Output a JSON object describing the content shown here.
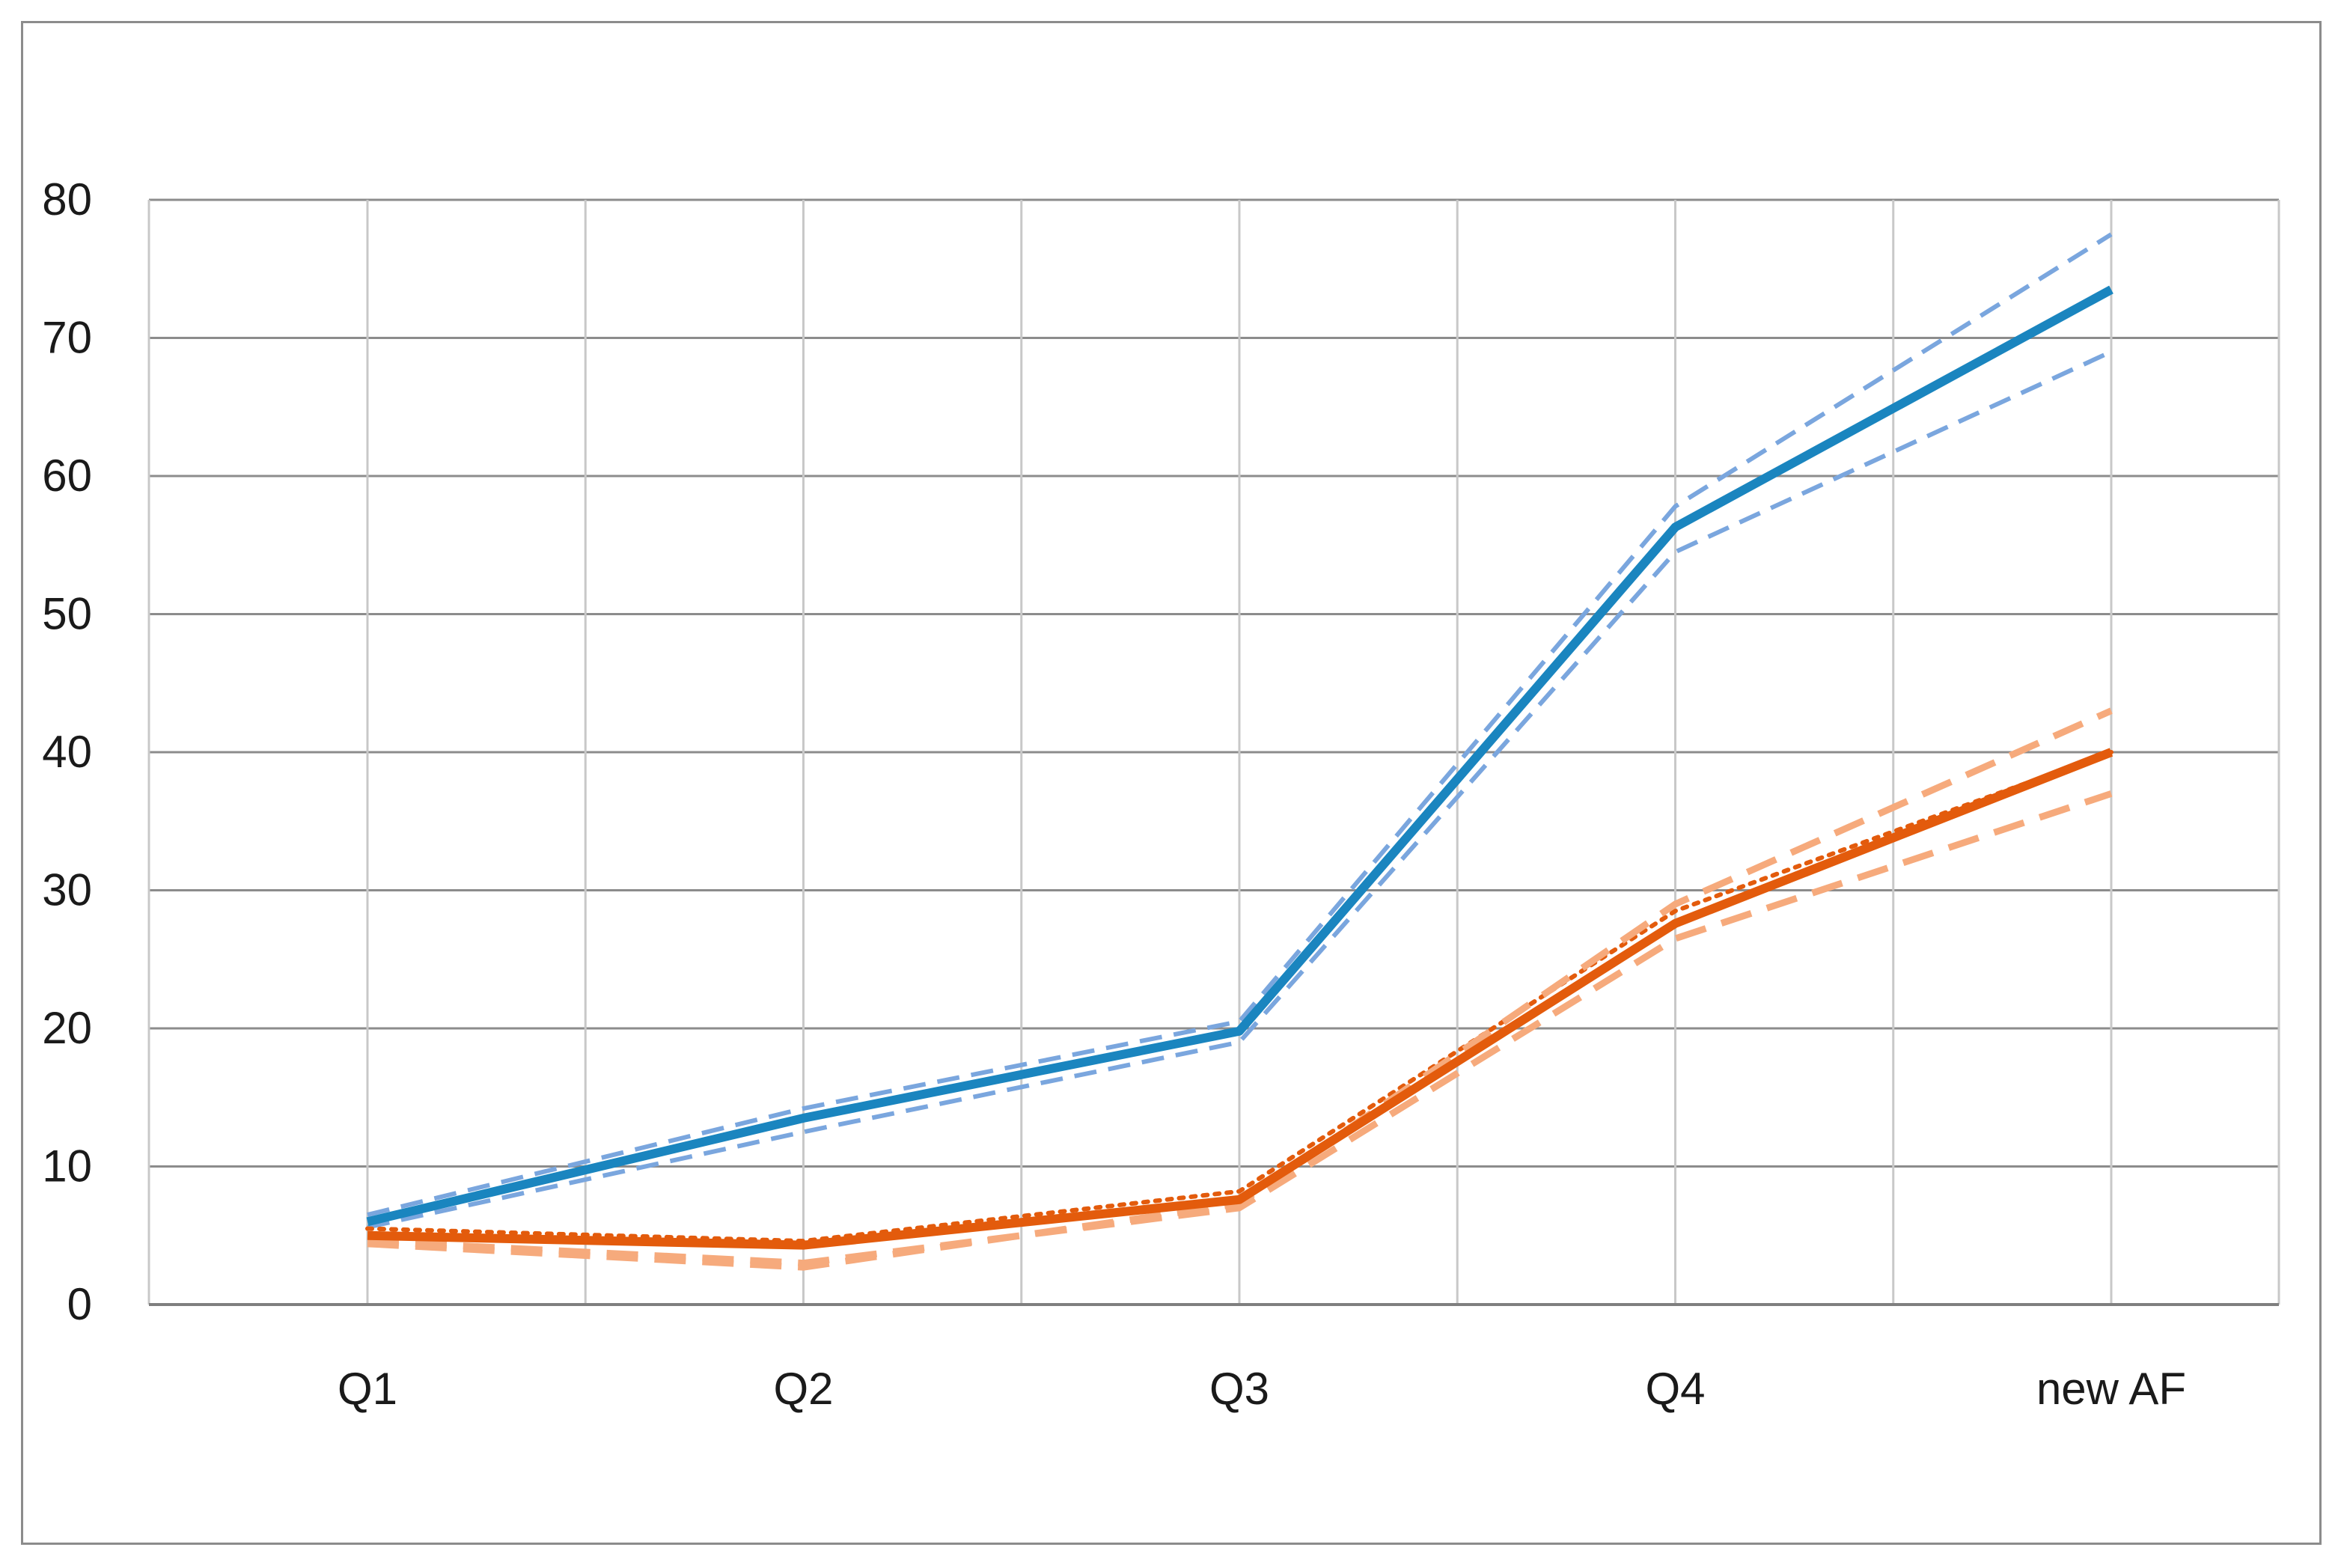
{
  "chart_data": {
    "type": "line",
    "categories": [
      "Q1",
      "Q2",
      "Q3",
      "Q4",
      "new AF"
    ],
    "ylim": [
      0,
      80
    ],
    "yticks": [
      0,
      10,
      20,
      30,
      40,
      50,
      60,
      70,
      80
    ],
    "grid": true,
    "legend": "none",
    "series": [
      {
        "color": "#1a85bf",
        "style": "solid",
        "values": [
          6,
          13.5,
          19.8,
          56.3,
          73.5
        ]
      },
      {
        "color": "#7aa6de",
        "style": "dashed",
        "values": [
          6.5,
          14.2,
          20.5,
          57.8,
          77.5
        ]
      },
      {
        "color": "#7aa6de",
        "style": "dashed",
        "values": [
          5.6,
          12.5,
          19,
          54.5,
          69
        ]
      },
      {
        "color": "#e35b0c",
        "style": "solid",
        "values": [
          5,
          4.3,
          7.6,
          27.6,
          40
        ]
      },
      {
        "color": "#e35b0c",
        "style": "dotted",
        "values": [
          5.5,
          4.6,
          8.2,
          28.5,
          40
        ]
      },
      {
        "color": "#f6aa7c",
        "style": "dashed-long",
        "values": [
          4.4,
          2.7,
          7.3,
          29,
          43
        ]
      },
      {
        "color": "#f6aa7c",
        "style": "dashed-long",
        "values": [
          4.6,
          3.0,
          7.0,
          26.5,
          37
        ]
      }
    ]
  }
}
